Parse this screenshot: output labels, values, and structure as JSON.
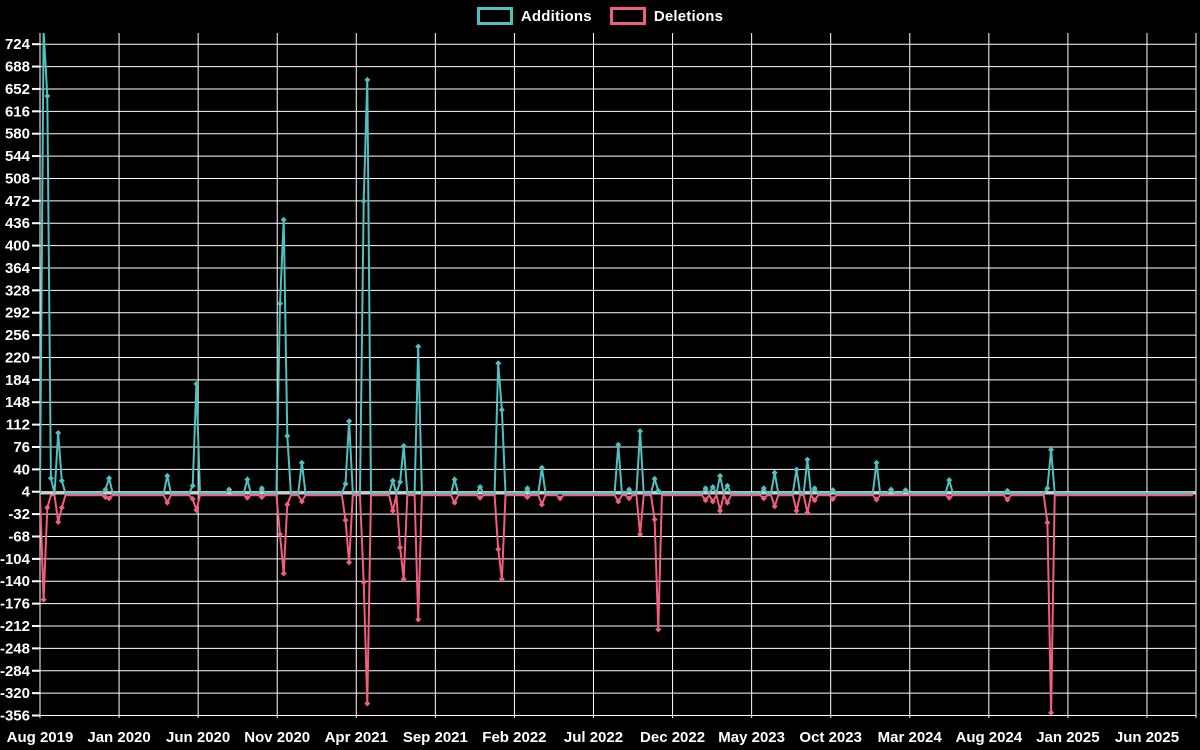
{
  "legend": {
    "items": [
      {
        "label": "Additions",
        "color": "#4fc0c0"
      },
      {
        "label": "Deletions",
        "color": "#f25e7c"
      }
    ]
  },
  "colors": {
    "background": "#000000",
    "grid": "#ffffff",
    "zero_line": "#cfcfcf",
    "text": "#ffffff",
    "additions": "#4fc0c0",
    "deletions": "#f25e7c"
  },
  "chart_data": {
    "type": "line",
    "title": "",
    "legend_position": "top-center",
    "grid": true,
    "marker": "diamond",
    "x_axis": {
      "label": "",
      "unit": "weeks (monthly ticks every 5 months)",
      "tick_labels": [
        "Aug 2019",
        "Jan 2020",
        "Jun 2020",
        "Nov 2020",
        "Apr 2021",
        "Sep 2021",
        "Feb 2022",
        "Jul 2022",
        "Dec 2022",
        "May 2023",
        "Oct 2023",
        "Mar 2024",
        "Aug 2024",
        "Jan 2025",
        "Jun 2025"
      ],
      "weeks_total": 318
    },
    "y_axis": {
      "label": "",
      "tick_labels": [
        724,
        688,
        652,
        616,
        580,
        544,
        508,
        472,
        436,
        400,
        364,
        328,
        292,
        256,
        220,
        184,
        148,
        112,
        76,
        40,
        4,
        -32,
        -68,
        -104,
        -140,
        -176,
        -212,
        -248,
        -284,
        -320,
        -356
      ],
      "tick_step": 36,
      "render_range": [
        -360,
        742
      ]
    },
    "points_format": "[week_index_from_Aug_2019, value]; weeks not listed are 0",
    "note": "First Additions spike is clipped at the top of the plot (>=740).",
    "series": [
      {
        "name": "Additions",
        "color": "#4fc0c0",
        "points": [
          [
            1,
            745
          ],
          [
            2,
            639
          ],
          [
            3,
            24
          ],
          [
            5,
            97
          ],
          [
            6,
            20
          ],
          [
            18,
            6
          ],
          [
            19,
            24
          ],
          [
            35,
            28
          ],
          [
            42,
            12
          ],
          [
            43,
            176
          ],
          [
            52,
            6
          ],
          [
            57,
            22
          ],
          [
            61,
            8
          ],
          [
            66,
            305
          ],
          [
            67,
            440
          ],
          [
            68,
            92
          ],
          [
            72,
            49
          ],
          [
            84,
            15
          ],
          [
            85,
            116
          ],
          [
            89,
            470
          ],
          [
            90,
            665
          ],
          [
            97,
            20
          ],
          [
            99,
            18
          ],
          [
            100,
            76
          ],
          [
            104,
            236
          ],
          [
            114,
            22
          ],
          [
            121,
            10
          ],
          [
            126,
            209
          ],
          [
            127,
            134
          ],
          [
            134,
            8
          ],
          [
            138,
            41
          ],
          [
            159,
            78
          ],
          [
            162,
            6
          ],
          [
            165,
            100
          ],
          [
            169,
            23
          ],
          [
            170,
            4
          ],
          [
            183,
            8
          ],
          [
            185,
            10
          ],
          [
            187,
            28
          ],
          [
            189,
            12
          ],
          [
            199,
            8
          ],
          [
            202,
            33
          ],
          [
            208,
            38
          ],
          [
            211,
            54
          ],
          [
            213,
            8
          ],
          [
            218,
            5
          ],
          [
            230,
            49
          ],
          [
            234,
            6
          ],
          [
            238,
            5
          ],
          [
            250,
            21
          ],
          [
            266,
            4
          ],
          [
            277,
            8
          ],
          [
            278,
            70
          ]
        ]
      },
      {
        "name": "Deletions",
        "color": "#f25e7c",
        "points": [
          [
            1,
            -168
          ],
          [
            2,
            -20
          ],
          [
            5,
            -43
          ],
          [
            6,
            -20
          ],
          [
            18,
            -3
          ],
          [
            19,
            -5
          ],
          [
            35,
            -12
          ],
          [
            42,
            -6
          ],
          [
            43,
            -24
          ],
          [
            57,
            -4
          ],
          [
            61,
            -3
          ],
          [
            66,
            -63
          ],
          [
            67,
            -126
          ],
          [
            68,
            -15
          ],
          [
            72,
            -10
          ],
          [
            84,
            -40
          ],
          [
            85,
            -108
          ],
          [
            89,
            -140
          ],
          [
            90,
            -335
          ],
          [
            97,
            -25
          ],
          [
            99,
            -84
          ],
          [
            100,
            -135
          ],
          [
            104,
            -200
          ],
          [
            114,
            -12
          ],
          [
            121,
            -4
          ],
          [
            126,
            -87
          ],
          [
            127,
            -135
          ],
          [
            134,
            -3
          ],
          [
            138,
            -15
          ],
          [
            143,
            -5
          ],
          [
            159,
            -10
          ],
          [
            162,
            -5
          ],
          [
            165,
            -63
          ],
          [
            169,
            -39
          ],
          [
            170,
            -216
          ],
          [
            183,
            -8
          ],
          [
            185,
            -10
          ],
          [
            187,
            -25
          ],
          [
            189,
            -12
          ],
          [
            199,
            -5
          ],
          [
            202,
            -18
          ],
          [
            208,
            -25
          ],
          [
            211,
            -28
          ],
          [
            213,
            -8
          ],
          [
            218,
            -6
          ],
          [
            230,
            -7
          ],
          [
            250,
            -4
          ],
          [
            266,
            -7
          ],
          [
            277,
            -44
          ],
          [
            278,
            -350
          ]
        ]
      }
    ]
  }
}
